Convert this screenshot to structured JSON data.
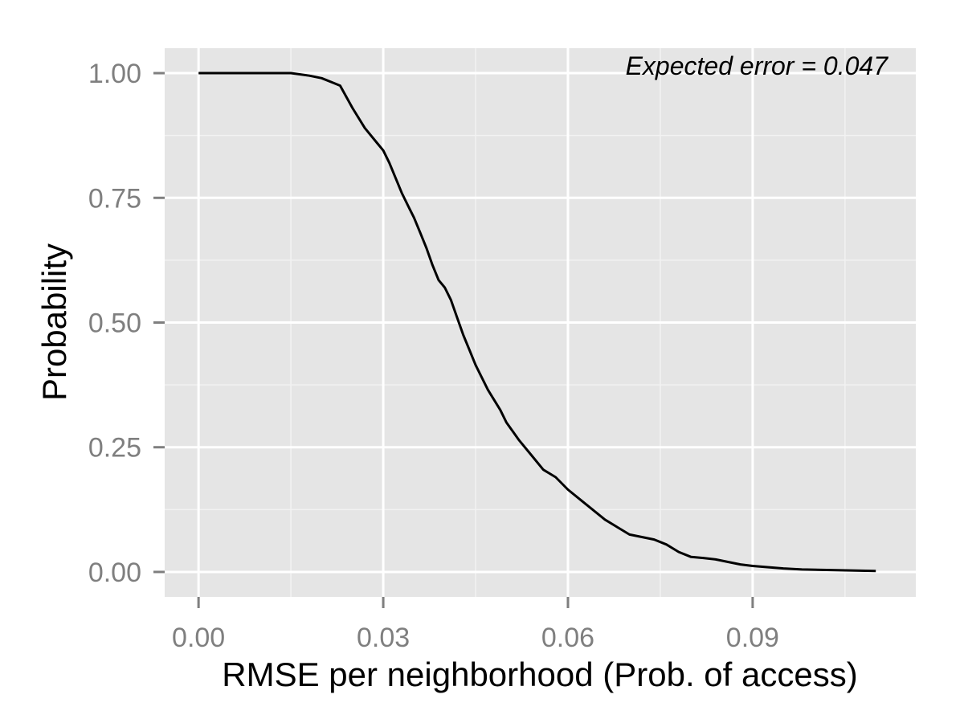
{
  "chart_data": {
    "type": "line",
    "xlabel": "RMSE per neighborhood (Prob. of access)",
    "ylabel": "Probability",
    "xlim": [
      -0.0055,
      0.1165
    ],
    "ylim": [
      -0.05,
      1.05
    ],
    "x_ticks": [
      0.0,
      0.03,
      0.06,
      0.09
    ],
    "x_tick_labels": [
      "0.00",
      "0.03",
      "0.06",
      "0.09"
    ],
    "x_minor": [
      0.015,
      0.045,
      0.075,
      0.105
    ],
    "y_ticks": [
      0.0,
      0.25,
      0.5,
      0.75,
      1.0
    ],
    "y_tick_labels": [
      "0.00",
      "0.25",
      "0.50",
      "0.75",
      "1.00"
    ],
    "y_minor": [
      0.125,
      0.375,
      0.625,
      0.875
    ],
    "grid": true,
    "annotation": "Expected error = 0.047",
    "colors": {
      "panel": "#e5e5e5",
      "grid_major": "#ffffff",
      "grid_minor": "#f2f2f2",
      "line": "#000000",
      "tick": "#7f7f7f"
    },
    "series": [
      {
        "x": [
          0.0,
          0.005,
          0.01,
          0.015,
          0.018,
          0.02,
          0.022,
          0.023,
          0.025,
          0.027,
          0.029,
          0.03,
          0.031,
          0.032,
          0.033,
          0.034,
          0.035,
          0.036,
          0.037,
          0.038,
          0.039,
          0.04,
          0.041,
          0.042,
          0.043,
          0.044,
          0.045,
          0.046,
          0.047,
          0.048,
          0.049,
          0.05,
          0.052,
          0.054,
          0.056,
          0.058,
          0.06,
          0.062,
          0.064,
          0.066,
          0.068,
          0.07,
          0.072,
          0.074,
          0.076,
          0.078,
          0.08,
          0.082,
          0.084,
          0.086,
          0.088,
          0.09,
          0.092,
          0.095,
          0.098,
          0.102,
          0.106,
          0.11
        ],
        "y": [
          1.0,
          1.0,
          1.0,
          1.0,
          0.995,
          0.99,
          0.98,
          0.975,
          0.93,
          0.89,
          0.86,
          0.845,
          0.82,
          0.79,
          0.76,
          0.735,
          0.71,
          0.68,
          0.65,
          0.615,
          0.585,
          0.57,
          0.545,
          0.51,
          0.475,
          0.445,
          0.415,
          0.39,
          0.365,
          0.345,
          0.325,
          0.3,
          0.265,
          0.235,
          0.205,
          0.19,
          0.165,
          0.145,
          0.125,
          0.105,
          0.09,
          0.075,
          0.07,
          0.065,
          0.055,
          0.04,
          0.03,
          0.028,
          0.025,
          0.02,
          0.015,
          0.012,
          0.01,
          0.007,
          0.005,
          0.004,
          0.003,
          0.002
        ]
      }
    ]
  }
}
